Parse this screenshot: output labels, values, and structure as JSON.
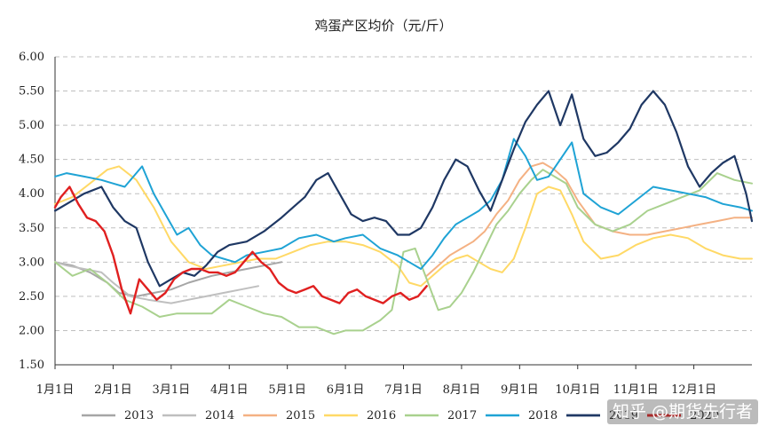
{
  "chart_data": {
    "type": "line",
    "title": "鸡蛋产区均价（元/斤）",
    "xlabel": "",
    "ylabel": "",
    "ylim": [
      1.5,
      6.0
    ],
    "y_ticks": [
      "1.50",
      "2.00",
      "2.50",
      "3.00",
      "3.50",
      "4.00",
      "4.50",
      "5.00",
      "5.50",
      "6.00"
    ],
    "x_ticks": [
      "1月1日",
      "2月1日",
      "3月1日",
      "4月1日",
      "5月1日",
      "6月1日",
      "7月1日",
      "8月1日",
      "9月1日",
      "10月1日",
      "11月1日",
      "12月1日"
    ],
    "x_unit": "month (1 = Jan 1, 13 = end of Dec)",
    "grid": "horizontal dashed",
    "legend": "bottom",
    "watermark": "知乎 @期货先行者",
    "series": [
      {
        "name": "2013",
        "color": "#a6a6a6",
        "width": 2,
        "x": [
          1.0,
          1.3,
          1.6,
          1.9,
          2.1,
          2.4,
          2.7,
          3.0,
          3.3,
          3.7,
          4.0,
          4.3,
          4.6,
          4.9
        ],
        "y": [
          3.0,
          2.95,
          2.85,
          2.7,
          2.55,
          2.5,
          2.55,
          2.6,
          2.7,
          2.8,
          2.85,
          2.9,
          2.95,
          3.0
        ]
      },
      {
        "name": "2014",
        "color": "#bfbfbf",
        "width": 2,
        "x": [
          1.0,
          1.2,
          1.5,
          1.8,
          2.0,
          2.3,
          2.6,
          3.0,
          3.3,
          3.6,
          3.9,
          4.2,
          4.5
        ],
        "y": [
          3.0,
          2.95,
          2.9,
          2.85,
          2.7,
          2.5,
          2.45,
          2.4,
          2.45,
          2.5,
          2.55,
          2.6,
          2.65
        ]
      },
      {
        "name": "2015",
        "color": "#f4b183",
        "width": 2,
        "x": [
          7.4,
          7.6,
          7.8,
          8.0,
          8.2,
          8.4,
          8.6,
          8.8,
          9.0,
          9.2,
          9.4,
          9.6,
          9.8,
          10.0,
          10.3,
          10.6,
          10.9,
          11.2,
          11.5,
          11.8,
          12.1,
          12.4,
          12.7,
          13.0
        ],
        "y": [
          2.8,
          2.95,
          3.1,
          3.2,
          3.3,
          3.45,
          3.7,
          3.9,
          4.2,
          4.4,
          4.45,
          4.35,
          4.2,
          3.9,
          3.55,
          3.45,
          3.4,
          3.4,
          3.45,
          3.5,
          3.55,
          3.6,
          3.65,
          3.65
        ]
      },
      {
        "name": "2016",
        "color": "#ffd966",
        "width": 2,
        "x": [
          1.0,
          1.3,
          1.6,
          1.9,
          2.1,
          2.4,
          2.7,
          3.0,
          3.3,
          3.6,
          3.9,
          4.2,
          4.5,
          4.8,
          5.1,
          5.4,
          5.7,
          6.0,
          6.3,
          6.6,
          6.9,
          7.1,
          7.3,
          7.5,
          7.7,
          7.9,
          8.1,
          8.3,
          8.5,
          8.7,
          8.9,
          9.1,
          9.3,
          9.5,
          9.7,
          9.9,
          10.1,
          10.4,
          10.7,
          11.0,
          11.3,
          11.6,
          11.9,
          12.2,
          12.5,
          12.8,
          13.0
        ],
        "y": [
          3.85,
          3.95,
          4.15,
          4.35,
          4.4,
          4.2,
          3.8,
          3.3,
          3.0,
          2.9,
          2.95,
          3.0,
          3.05,
          3.05,
          3.15,
          3.25,
          3.3,
          3.3,
          3.25,
          3.15,
          2.95,
          2.7,
          2.65,
          2.8,
          2.95,
          3.05,
          3.1,
          3.0,
          2.9,
          2.85,
          3.05,
          3.5,
          4.0,
          4.1,
          4.05,
          3.7,
          3.3,
          3.05,
          3.1,
          3.25,
          3.35,
          3.4,
          3.35,
          3.2,
          3.1,
          3.05,
          3.05
        ]
      },
      {
        "name": "2017",
        "color": "#a9d18e",
        "width": 2,
        "x": [
          1.0,
          1.3,
          1.6,
          1.9,
          2.2,
          2.5,
          2.8,
          3.1,
          3.4,
          3.7,
          4.0,
          4.3,
          4.6,
          4.9,
          5.2,
          5.5,
          5.8,
          6.0,
          6.3,
          6.6,
          6.8,
          7.0,
          7.2,
          7.4,
          7.6,
          7.8,
          8.0,
          8.2,
          8.4,
          8.6,
          8.8,
          9.0,
          9.2,
          9.4,
          9.6,
          9.8,
          10.0,
          10.3,
          10.6,
          10.9,
          11.2,
          11.5,
          11.8,
          12.1,
          12.4,
          12.7,
          13.0
        ],
        "y": [
          3.0,
          2.8,
          2.9,
          2.7,
          2.45,
          2.35,
          2.2,
          2.25,
          2.25,
          2.25,
          2.45,
          2.35,
          2.25,
          2.2,
          2.05,
          2.05,
          1.95,
          2.0,
          2.0,
          2.15,
          2.3,
          3.15,
          3.2,
          2.75,
          2.3,
          2.35,
          2.55,
          2.85,
          3.2,
          3.55,
          3.75,
          4.0,
          4.2,
          4.35,
          4.25,
          4.15,
          3.8,
          3.55,
          3.45,
          3.55,
          3.75,
          3.85,
          3.95,
          4.05,
          4.3,
          4.2,
          4.15
        ]
      },
      {
        "name": "2018",
        "color": "#1fa3d5",
        "width": 2,
        "x": [
          1.0,
          1.2,
          1.5,
          1.8,
          2.0,
          2.2,
          2.5,
          2.7,
          2.9,
          3.1,
          3.3,
          3.5,
          3.7,
          3.9,
          4.1,
          4.3,
          4.6,
          4.9,
          5.2,
          5.5,
          5.8,
          6.0,
          6.3,
          6.6,
          6.9,
          7.1,
          7.3,
          7.5,
          7.7,
          7.9,
          8.1,
          8.3,
          8.5,
          8.7,
          8.9,
          9.1,
          9.3,
          9.5,
          9.7,
          9.9,
          10.1,
          10.4,
          10.7,
          11.0,
          11.3,
          11.6,
          11.9,
          12.2,
          12.5,
          12.8,
          13.0
        ],
        "y": [
          4.25,
          4.3,
          4.25,
          4.2,
          4.15,
          4.1,
          4.4,
          4.0,
          3.7,
          3.4,
          3.5,
          3.25,
          3.1,
          3.05,
          3.0,
          3.1,
          3.15,
          3.2,
          3.35,
          3.4,
          3.3,
          3.35,
          3.4,
          3.2,
          3.1,
          3.0,
          2.9,
          3.1,
          3.35,
          3.55,
          3.65,
          3.75,
          3.9,
          4.2,
          4.8,
          4.55,
          4.2,
          4.25,
          4.5,
          4.75,
          4.0,
          3.8,
          3.7,
          3.9,
          4.1,
          4.05,
          4.0,
          3.95,
          3.85,
          3.8,
          3.75
        ]
      },
      {
        "name": "2019",
        "color": "#1f3864",
        "width": 2.2,
        "x": [
          1.0,
          1.2,
          1.5,
          1.8,
          2.0,
          2.2,
          2.4,
          2.6,
          2.8,
          3.0,
          3.2,
          3.4,
          3.6,
          3.8,
          4.0,
          4.3,
          4.6,
          4.9,
          5.1,
          5.3,
          5.5,
          5.7,
          5.9,
          6.1,
          6.3,
          6.5,
          6.7,
          6.9,
          7.1,
          7.3,
          7.5,
          7.7,
          7.9,
          8.1,
          8.3,
          8.5,
          8.7,
          8.9,
          9.1,
          9.3,
          9.5,
          9.7,
          9.9,
          10.1,
          10.3,
          10.5,
          10.7,
          10.9,
          11.1,
          11.3,
          11.5,
          11.7,
          11.9,
          12.1,
          12.3,
          12.5,
          12.7,
          12.9,
          13.0
        ],
        "y": [
          3.75,
          3.85,
          4.0,
          4.1,
          3.8,
          3.6,
          3.5,
          3.0,
          2.65,
          2.75,
          2.85,
          2.8,
          2.95,
          3.15,
          3.25,
          3.3,
          3.45,
          3.65,
          3.8,
          3.95,
          4.2,
          4.3,
          4.0,
          3.7,
          3.6,
          3.65,
          3.6,
          3.4,
          3.4,
          3.5,
          3.8,
          4.2,
          4.5,
          4.4,
          4.05,
          3.75,
          4.2,
          4.65,
          5.05,
          5.3,
          5.5,
          5.0,
          5.45,
          4.8,
          4.55,
          4.6,
          4.75,
          4.95,
          5.3,
          5.5,
          5.3,
          4.9,
          4.4,
          4.1,
          4.3,
          4.45,
          4.55,
          4.0,
          3.6
        ]
      },
      {
        "name": "2020",
        "color": "#e02020",
        "width": 2.4,
        "x": [
          1.0,
          1.1,
          1.25,
          1.4,
          1.55,
          1.7,
          1.85,
          2.0,
          2.15,
          2.3,
          2.45,
          2.6,
          2.75,
          2.9,
          3.05,
          3.2,
          3.35,
          3.5,
          3.65,
          3.8,
          3.95,
          4.1,
          4.25,
          4.4,
          4.55,
          4.7,
          4.85,
          5.0,
          5.15,
          5.3,
          5.45,
          5.6,
          5.75,
          5.9,
          6.05,
          6.2,
          6.35,
          6.5,
          6.65,
          6.8,
          6.95,
          7.1,
          7.25,
          7.4
        ],
        "y": [
          3.8,
          3.95,
          4.1,
          3.85,
          3.65,
          3.6,
          3.45,
          3.1,
          2.6,
          2.25,
          2.75,
          2.6,
          2.45,
          2.55,
          2.75,
          2.85,
          2.9,
          2.9,
          2.85,
          2.85,
          2.8,
          2.85,
          3.0,
          3.15,
          3.0,
          2.9,
          2.7,
          2.6,
          2.55,
          2.6,
          2.65,
          2.5,
          2.45,
          2.4,
          2.55,
          2.6,
          2.5,
          2.45,
          2.4,
          2.5,
          2.55,
          2.45,
          2.5,
          2.65
        ]
      }
    ]
  }
}
